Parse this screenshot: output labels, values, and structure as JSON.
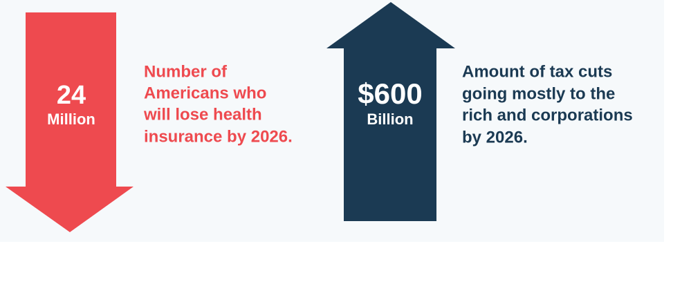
{
  "items": [
    {
      "figure": "24",
      "unit": "Million",
      "description": [
        "Number of",
        "Americans who",
        "will lose health",
        "insurance by 2026."
      ]
    },
    {
      "figure": "$600",
      "unit": "Billion",
      "description": [
        "Amount of tax cuts",
        "going mostly to the",
        "rich and corporations",
        "by 2026."
      ]
    }
  ]
}
